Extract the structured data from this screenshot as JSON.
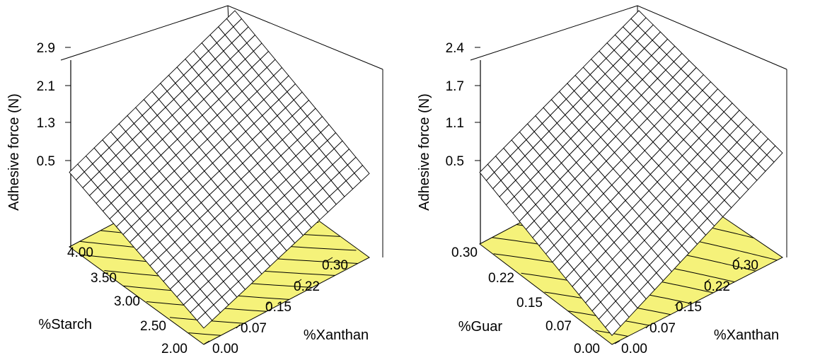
{
  "chart_data": [
    {
      "type": "surface3d",
      "title": "",
      "zlabel": "Adhesive force (N)",
      "xlabel": "%Starch",
      "ylabel": "%Xanthan",
      "zlim": [
        -0.3,
        2.9
      ],
      "z_ticks": [
        "0.5",
        "1.3",
        "2.1",
        "2.9"
      ],
      "x_ticks": [
        "2.00",
        "2.50",
        "3.00",
        "3.50",
        "4.00"
      ],
      "y_ticks": [
        "0.00",
        "0.07",
        "0.15",
        "0.22",
        "0.30"
      ],
      "xlim": [
        2.0,
        4.0
      ],
      "ylim": [
        0.0,
        0.3
      ],
      "corner_values": {
        "starch_low_xanthan_low": 0.05,
        "starch_high_xanthan_low": 1.3,
        "starch_low_xanthan_high": 1.5,
        "starch_high_xanthan_high": 2.9
      },
      "surface_color": "#ffffff",
      "contour_floor_color": "#f5f27a"
    },
    {
      "type": "surface3d",
      "title": "",
      "zlabel": "Adhesive force (N)",
      "xlabel": "%Guar",
      "ylabel": "%Xanthan",
      "zlim": [
        -0.1,
        2.4
      ],
      "z_ticks": [
        "0.5",
        "1.1",
        "1.7",
        "2.4"
      ],
      "x_ticks": [
        "0.00",
        "0.07",
        "0.15",
        "0.22",
        "0.30"
      ],
      "y_ticks": [
        "0.00",
        "0.07",
        "0.15",
        "0.22",
        "0.30"
      ],
      "xlim": [
        0.0,
        0.3
      ],
      "ylim": [
        0.0,
        0.3
      ],
      "corner_values": {
        "guar_low_xanthan_low": 0.05,
        "guar_high_xanthan_low": 1.1,
        "guar_low_xanthan_high": 1.65,
        "guar_high_xanthan_high": 2.4
      },
      "surface_color": "#ffffff",
      "contour_floor_color": "#f5f27a"
    }
  ]
}
